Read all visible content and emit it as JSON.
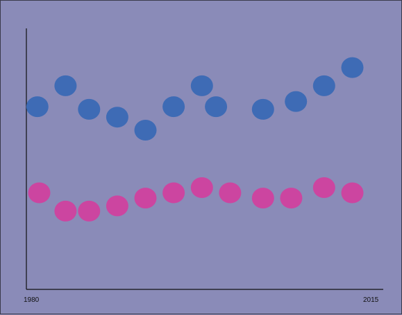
{
  "colors": {
    "background": "#8a8bb8",
    "axis": "#111111",
    "series_blue": "#3e6bb5",
    "series_pink": "#cc45a0"
  },
  "chart_data": {
    "type": "scatter",
    "title": "",
    "xlabel": "",
    "ylabel": "",
    "x_tick_labels": [
      "1980",
      "2015"
    ],
    "xlim": [
      1980,
      2015
    ],
    "grid": false,
    "legend": "none",
    "series": [
      {
        "color": "#3e6bb5",
        "points": [
          {
            "x": 1980.5,
            "y": 70
          },
          {
            "x": 1983.5,
            "y": 78
          },
          {
            "x": 1986.0,
            "y": 69
          },
          {
            "x": 1989.0,
            "y": 66
          },
          {
            "x": 1992.0,
            "y": 61
          },
          {
            "x": 1995.0,
            "y": 70
          },
          {
            "x": 1998.0,
            "y": 78
          },
          {
            "x": 1999.5,
            "y": 70
          },
          {
            "x": 2004.5,
            "y": 69
          },
          {
            "x": 2008.0,
            "y": 72
          },
          {
            "x": 2011.0,
            "y": 78
          },
          {
            "x": 2014.0,
            "y": 85
          }
        ]
      },
      {
        "color": "#cc45a0",
        "points": [
          {
            "x": 1980.7,
            "y": 37
          },
          {
            "x": 1983.5,
            "y": 30
          },
          {
            "x": 1986.0,
            "y": 30
          },
          {
            "x": 1989.0,
            "y": 32
          },
          {
            "x": 1992.0,
            "y": 35
          },
          {
            "x": 1995.0,
            "y": 37
          },
          {
            "x": 1998.0,
            "y": 39
          },
          {
            "x": 2001.0,
            "y": 37
          },
          {
            "x": 2004.5,
            "y": 35
          },
          {
            "x": 2007.5,
            "y": 35
          },
          {
            "x": 2011.0,
            "y": 39
          },
          {
            "x": 2014.0,
            "y": 37
          }
        ]
      }
    ]
  }
}
